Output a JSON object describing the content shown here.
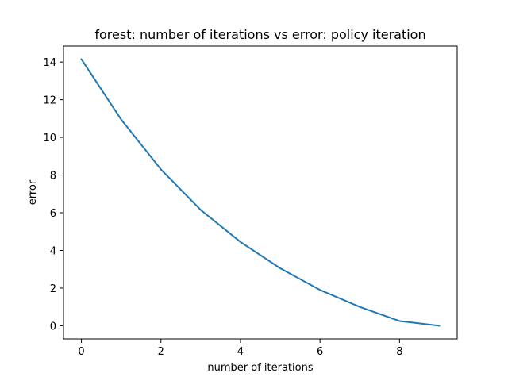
{
  "chart_data": {
    "type": "line",
    "title": "forest: number of iterations vs error: policy iteration",
    "xlabel": "number of iterations",
    "ylabel": "error",
    "xlim": [
      -0.45,
      9.45
    ],
    "ylim": [
      -0.7,
      14.85
    ],
    "xticks": [
      0,
      2,
      4,
      6,
      8
    ],
    "yticks": [
      0,
      2,
      4,
      6,
      8,
      10,
      12,
      14
    ],
    "grid": false,
    "series": [
      {
        "color": "#1f77b4",
        "x": [
          0,
          1,
          2,
          3,
          4,
          5,
          6,
          7,
          8,
          9
        ],
        "y": [
          14.15,
          10.95,
          8.3,
          6.15,
          4.45,
          3.05,
          1.9,
          1.0,
          0.25,
          0.0
        ]
      }
    ]
  }
}
